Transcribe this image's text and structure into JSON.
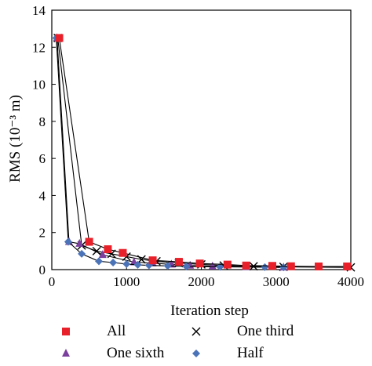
{
  "chart_data": {
    "type": "line",
    "xlabel": "Iteration step",
    "ylabel": "RMS (10⁻³ m)",
    "xlim": [
      0,
      4000
    ],
    "ylim": [
      0,
      14
    ],
    "x_ticks": [
      "0",
      "1000",
      "2000",
      "3000",
      "4000"
    ],
    "y_ticks": [
      "0",
      "2",
      "4",
      "6",
      "8",
      "10",
      "12",
      "14"
    ],
    "grid": false,
    "legend_position": "bottom",
    "series": [
      {
        "name": "All",
        "color": "#e8202a",
        "marker": "square",
        "points": [
          [
            100,
            12.5
          ],
          [
            500,
            1.5
          ],
          [
            750,
            1.1
          ],
          [
            950,
            0.9
          ],
          [
            1350,
            0.5
          ],
          [
            1700,
            0.42
          ],
          [
            1980,
            0.33
          ],
          [
            2350,
            0.27
          ],
          [
            2600,
            0.22
          ],
          [
            2950,
            0.2
          ],
          [
            3200,
            0.18
          ],
          [
            3570,
            0.17
          ],
          [
            3950,
            0.17
          ]
        ]
      },
      {
        "name": "One third",
        "color": "#000000",
        "marker": "x",
        "points": [
          [
            80,
            12.5
          ],
          [
            400,
            1.3
          ],
          [
            600,
            1.0
          ],
          [
            800,
            0.85
          ],
          [
            1000,
            0.7
          ],
          [
            1200,
            0.55
          ],
          [
            1400,
            0.45
          ],
          [
            1700,
            0.35
          ],
          [
            2000,
            0.28
          ],
          [
            2300,
            0.22
          ],
          [
            2700,
            0.18
          ],
          [
            3100,
            0.15
          ],
          [
            4000,
            0.12
          ]
        ]
      },
      {
        "name": "One sixth",
        "color": "#7b3f9e",
        "marker": "triangle",
        "points": [
          [
            70,
            12.5
          ],
          [
            230,
            1.5
          ],
          [
            370,
            1.4
          ],
          [
            680,
            0.8
          ],
          [
            1100,
            0.4
          ],
          [
            1350,
            0.35
          ],
          [
            1600,
            0.28
          ],
          [
            1850,
            0.22
          ],
          [
            2150,
            0.18
          ],
          [
            2600,
            0.15
          ],
          [
            3100,
            0.12
          ]
        ]
      },
      {
        "name": "Half",
        "color": "#4a73b8",
        "marker": "diamond",
        "points": [
          [
            60,
            12.5
          ],
          [
            220,
            1.5
          ],
          [
            400,
            0.85
          ],
          [
            630,
            0.45
          ],
          [
            820,
            0.38
          ],
          [
            1000,
            0.3
          ],
          [
            1150,
            0.26
          ],
          [
            1300,
            0.23
          ],
          [
            1550,
            0.2
          ],
          [
            1800,
            0.17
          ],
          [
            2250,
            0.15
          ],
          [
            2850,
            0.13
          ],
          [
            3100,
            0.12
          ]
        ]
      }
    ]
  }
}
